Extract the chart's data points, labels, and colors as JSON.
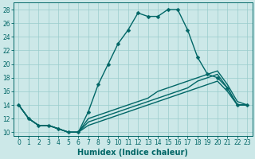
{
  "xlabel": "Humidex (Indice chaleur)",
  "bg_color": "#cce8e8",
  "line_color": "#006666",
  "grid_color": "#99cccc",
  "main_line": {
    "x": [
      0,
      1,
      2,
      3,
      4,
      5,
      6,
      7,
      8,
      9,
      10,
      11,
      12,
      13,
      14,
      15,
      16,
      17,
      18,
      19,
      20,
      21,
      22,
      23
    ],
    "y": [
      14,
      12,
      11,
      11,
      10.5,
      10,
      10,
      13,
      17,
      20,
      23,
      25,
      27.5,
      27,
      27,
      28,
      28,
      25,
      21,
      18.5,
      18,
      16.5,
      14,
      14
    ]
  },
  "flat_lines": [
    {
      "x": [
        0,
        1,
        2,
        3,
        4,
        5,
        6,
        7,
        8,
        9,
        10,
        11,
        12,
        13,
        14,
        15,
        16,
        17,
        18,
        19,
        20,
        21,
        22,
        23
      ],
      "y": [
        14,
        12,
        11,
        11,
        10.5,
        10,
        10,
        11,
        11.5,
        12,
        12.5,
        13,
        13.5,
        14,
        14.5,
        15,
        15.5,
        16,
        16.5,
        17,
        17.5,
        16,
        14,
        14
      ]
    },
    {
      "x": [
        0,
        1,
        2,
        3,
        4,
        5,
        6,
        7,
        8,
        9,
        10,
        11,
        12,
        13,
        14,
        15,
        16,
        17,
        18,
        19,
        20,
        21,
        22,
        23
      ],
      "y": [
        14,
        12,
        11,
        11,
        10.5,
        10,
        10,
        11.5,
        12,
        12.5,
        13,
        13.5,
        14,
        14.5,
        15,
        15.5,
        16,
        16.5,
        17.5,
        18,
        18.5,
        16.5,
        14,
        14
      ]
    },
    {
      "x": [
        0,
        1,
        2,
        3,
        4,
        5,
        6,
        7,
        8,
        9,
        10,
        11,
        12,
        13,
        14,
        15,
        16,
        17,
        18,
        19,
        20,
        21,
        22,
        23
      ],
      "y": [
        14,
        12,
        11,
        11,
        10.5,
        10,
        10,
        12,
        12.5,
        13,
        13.5,
        14,
        14.5,
        15,
        16,
        16.5,
        17,
        17.5,
        18,
        18.5,
        19,
        17,
        14.5,
        14
      ]
    }
  ],
  "xlim": [
    -0.5,
    23.5
  ],
  "ylim": [
    9.5,
    29
  ],
  "yticks": [
    10,
    12,
    14,
    16,
    18,
    20,
    22,
    24,
    26,
    28
  ],
  "xticks": [
    0,
    1,
    2,
    3,
    4,
    5,
    6,
    7,
    8,
    9,
    10,
    11,
    12,
    13,
    14,
    15,
    16,
    17,
    18,
    19,
    20,
    21,
    22,
    23
  ],
  "tick_fontsize": 5.5,
  "label_fontsize": 7.0,
  "marker": "D",
  "markersize": 2.5,
  "linewidth": 1.0
}
